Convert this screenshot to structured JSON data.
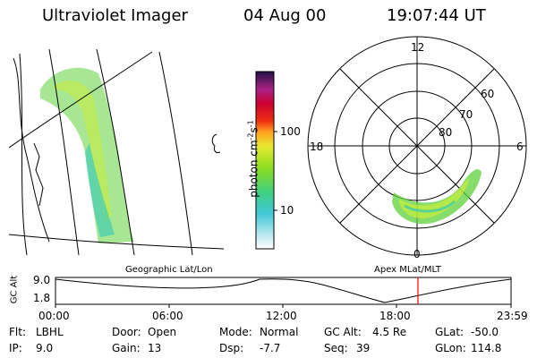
{
  "header": {
    "instrument": "Ultraviolet Imager",
    "date": "04 Aug 00",
    "time": "19:07:44 UT"
  },
  "colorbar": {
    "unit_label": "photon cm",
    "unit_exp1": "-2",
    "unit_s": "s",
    "unit_exp2": "-1",
    "tick_100": "100",
    "tick_10": "10"
  },
  "polar": {
    "mlt_12": "12",
    "mlt_18": "18",
    "mlt_6": "6",
    "mlt_0": "0",
    "lat_60": "60",
    "lat_70": "70",
    "lat_80": "80"
  },
  "panels": {
    "left_title": "Geographic Lat/Lon",
    "right_title": "Apex MLat/MLT"
  },
  "altitude_plot": {
    "ylabel": "GC Alt",
    "ytick_high": "9.0",
    "ytick_low": "1.8",
    "xticks": [
      "00:00",
      "06:00",
      "12:00",
      "18:00",
      "23:59"
    ],
    "current_time_marker": "19:07"
  },
  "info": {
    "flt_label": "Flt:",
    "flt_value": "LBHL",
    "ip_label": "IP:",
    "ip_value": "9.0",
    "door_label": "Door:",
    "door_value": "Open",
    "gain_label": "Gain:",
    "gain_value": "13",
    "mode_label": "Mode:",
    "mode_value": "Normal",
    "dsp_label": "Dsp:",
    "dsp_value": "-7.7",
    "gcalt_label": "GC Alt:",
    "gcalt_value": "4.5 Re",
    "seq_label": "Seq:",
    "seq_value": "39",
    "glat_label": "GLat:",
    "glat_value": "-50.0",
    "glon_label": "GLon:",
    "glon_value": "114.8"
  },
  "colors": {
    "background": "#ffffff",
    "grid": "#000000",
    "marker": "#ff0000",
    "aurora_green": "#66dd22",
    "aurora_cyan": "#33ccbb",
    "aurora_yellow": "#ccee33"
  }
}
